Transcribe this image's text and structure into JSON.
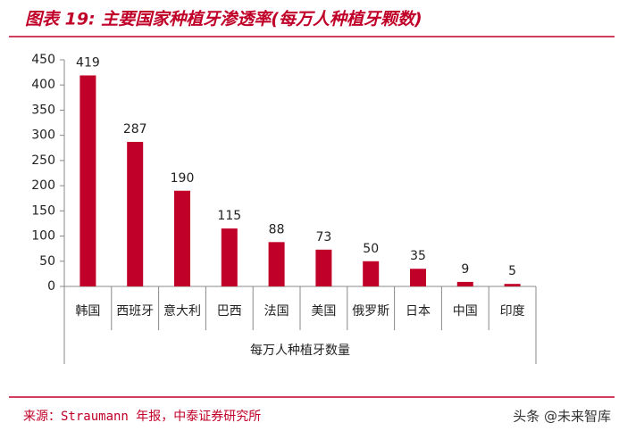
{
  "chart_data": {
    "type": "bar",
    "title": "图表 19: 主要国家种植牙渗透率(每万人种植牙颗数)",
    "x_label": "每万人种植牙数量",
    "categories": [
      "韩国",
      "西班牙",
      "意大利",
      "巴西",
      "法国",
      "美国",
      "俄罗斯",
      "日本",
      "中国",
      "印度"
    ],
    "values": [
      419,
      287,
      190,
      115,
      88,
      73,
      50,
      35,
      9,
      5
    ],
    "color": "#c00028",
    "ylim": [
      0,
      450
    ],
    "yticks": [
      0,
      50,
      100,
      150,
      200,
      250,
      300,
      350,
      400,
      450
    ],
    "source": "来源：Straumann 年报，中泰证券研究所",
    "watermark": "头条 @未来智库"
  }
}
